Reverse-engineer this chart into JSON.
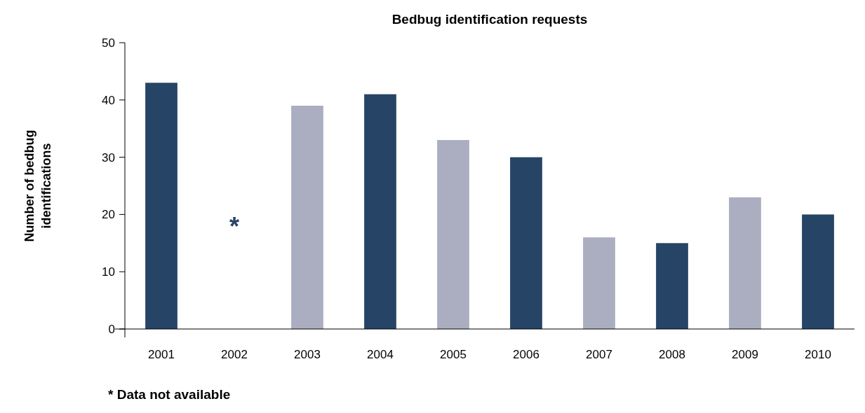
{
  "chart_data": {
    "type": "bar",
    "title": "Bedbug identification requests",
    "ylabel": "Number of bedbug identifications",
    "categories": [
      "2001",
      "2002",
      "2003",
      "2004",
      "2005",
      "2006",
      "2007",
      "2008",
      "2009",
      "2010"
    ],
    "values": [
      43,
      null,
      39,
      41,
      33,
      30,
      16,
      15,
      23,
      20
    ],
    "colors": [
      "#264466",
      "#264466",
      "#abaec0",
      "#264466",
      "#abaec0",
      "#264466",
      "#abaec0",
      "#264466",
      "#abaec0",
      "#264466"
    ],
    "ylim": [
      0,
      50
    ],
    "yticks": [
      0,
      10,
      20,
      30,
      40,
      50
    ],
    "grid": false,
    "annotations": [
      "*",
      "* Data not available"
    ]
  }
}
